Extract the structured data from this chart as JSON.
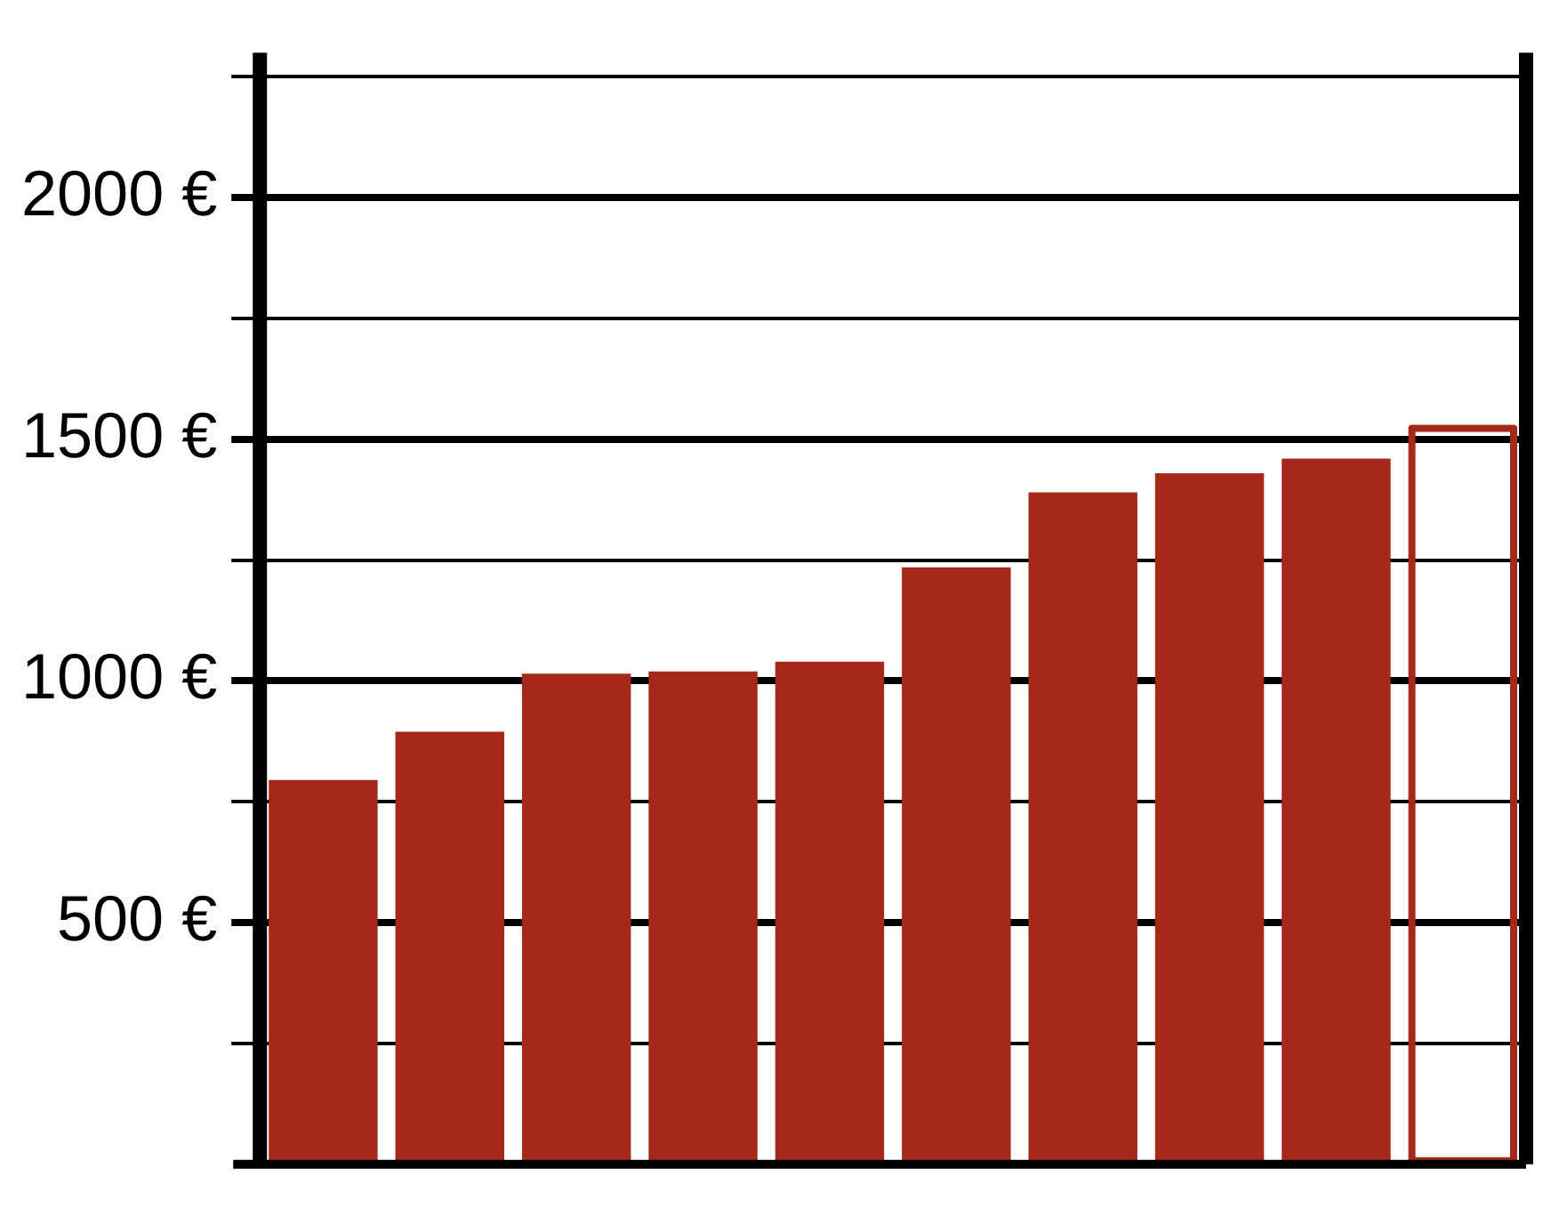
{
  "chart_data": {
    "type": "bar",
    "categories": [
      null,
      null,
      null,
      null,
      null,
      null,
      null,
      null,
      null,
      null
    ],
    "series": [
      {
        "color": "#a5281a",
        "values": [
          795,
          895,
          1015,
          1020,
          1040,
          1235,
          1390,
          1430,
          1460,
          null
        ]
      },
      {
        "color": "#a5281a",
        "line_style": "solid",
        "values": [
          null,
          null,
          null,
          null,
          null,
          null,
          null,
          null,
          null,
          1530
        ]
      }
    ],
    "ylim": [
      0,
      2300
    ],
    "yticks": [
      {
        "value": 250,
        "label": null
      },
      {
        "value": 500,
        "label": "500 €"
      },
      {
        "value": 750,
        "label": null
      },
      {
        "value": 1000,
        "label": "1000 €"
      },
      {
        "value": 1250,
        "label": null
      },
      {
        "value": 1500,
        "label": "1500 €"
      },
      {
        "value": 1750,
        "label": null
      },
      {
        "value": 2000,
        "label": "2000 €"
      },
      {
        "value": 2250,
        "label": null
      }
    ],
    "grid": "y",
    "legend": false
  }
}
